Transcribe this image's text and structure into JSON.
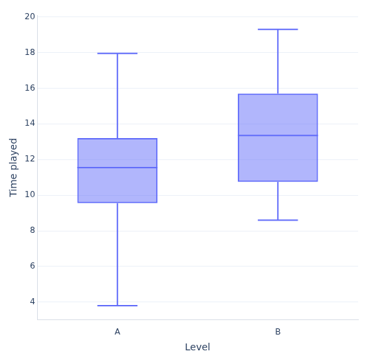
{
  "chart_data": {
    "type": "box",
    "x_label": "Level",
    "y_label": "Time played",
    "categories": [
      "A",
      "B"
    ],
    "values": [
      {
        "min": 3.8,
        "q1": 9.55,
        "median": 11.55,
        "q3": 13.2,
        "max": 17.95
      },
      {
        "min": 8.6,
        "q1": 10.75,
        "median": 13.35,
        "q3": 15.7,
        "max": 19.3
      }
    ],
    "color": "#636efa",
    "ylim": [
      3.0,
      20.1
    ],
    "yticks": [
      4,
      6,
      8,
      10,
      12,
      14,
      16,
      18,
      20
    ],
    "grid": true
  }
}
